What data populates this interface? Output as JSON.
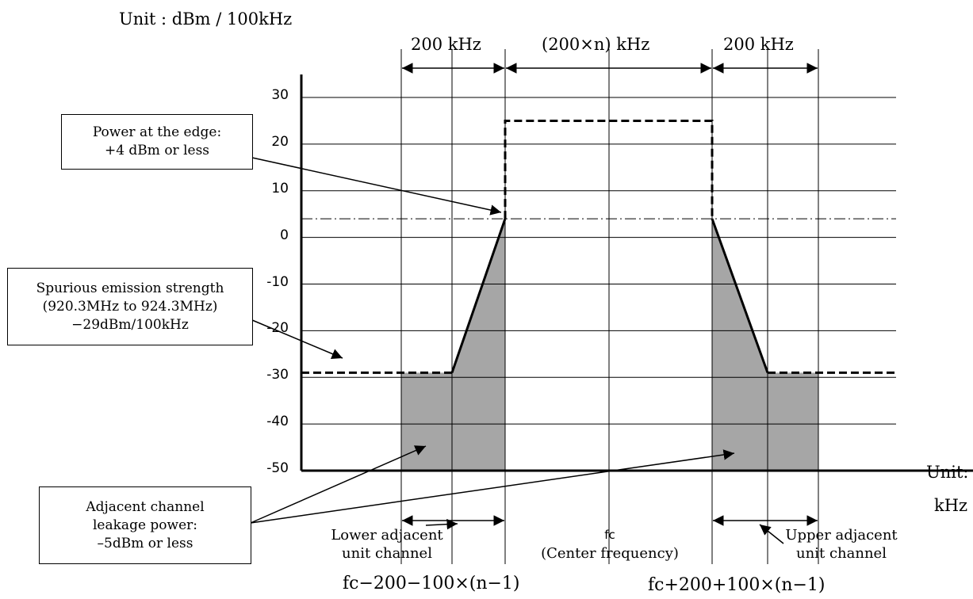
{
  "unit_y": "Unit : dBm / 100kHz",
  "unit_x_line1": "Unit:",
  "unit_x_line2": "kHz",
  "span_labels": {
    "left": "200 kHz",
    "center": "(200×n) kHz",
    "right": "200 kHz"
  },
  "callouts": {
    "edge_power": [
      "Power at the edge:",
      "+4 dBm or less"
    ],
    "spurious": [
      "Spurious emission strength",
      "(920.3MHz to 924.3MHz)",
      "−29dBm/100kHz"
    ],
    "aclr": [
      "Adjacent channel",
      "leakage power:",
      "–5dBm or less"
    ]
  },
  "channel_labels": {
    "lower": [
      "Lower adjacent",
      "unit channel"
    ],
    "center": [
      "fc",
      "(Center frequency)"
    ],
    "upper": [
      "Upper adjacent",
      "unit channel"
    ]
  },
  "bottom_formulas": {
    "left": "fc−200−100×(n−1)",
    "right": "fc+200+100×(n−1)"
  },
  "colors": {
    "shade": "#a6a6a6",
    "grid": "#000000"
  },
  "chart_data": {
    "type": "area",
    "ylim": [
      -50,
      30
    ],
    "yticks": [
      30,
      20,
      10,
      0,
      -10,
      -20,
      -30,
      -40,
      -50
    ],
    "ytick_labels": [
      "30",
      "20",
      "10",
      "0",
      "-10",
      "-20",
      "-30",
      "-40",
      "-50"
    ],
    "x_segments_khz": [
      100,
      100,
      "200×n",
      100,
      100
    ],
    "mask_dashed": {
      "description_levels_dbm": {
        "spurious": -29,
        "edge": 4,
        "inband": 25
      }
    },
    "reference_line_dbm": 4,
    "series": [
      {
        "name": "Adjacent channel leakage power",
        "points_dbm": {
          "channel_edge": 4,
          "half_channel_offset": -29,
          "outer_edge": -29
        }
      }
    ]
  }
}
